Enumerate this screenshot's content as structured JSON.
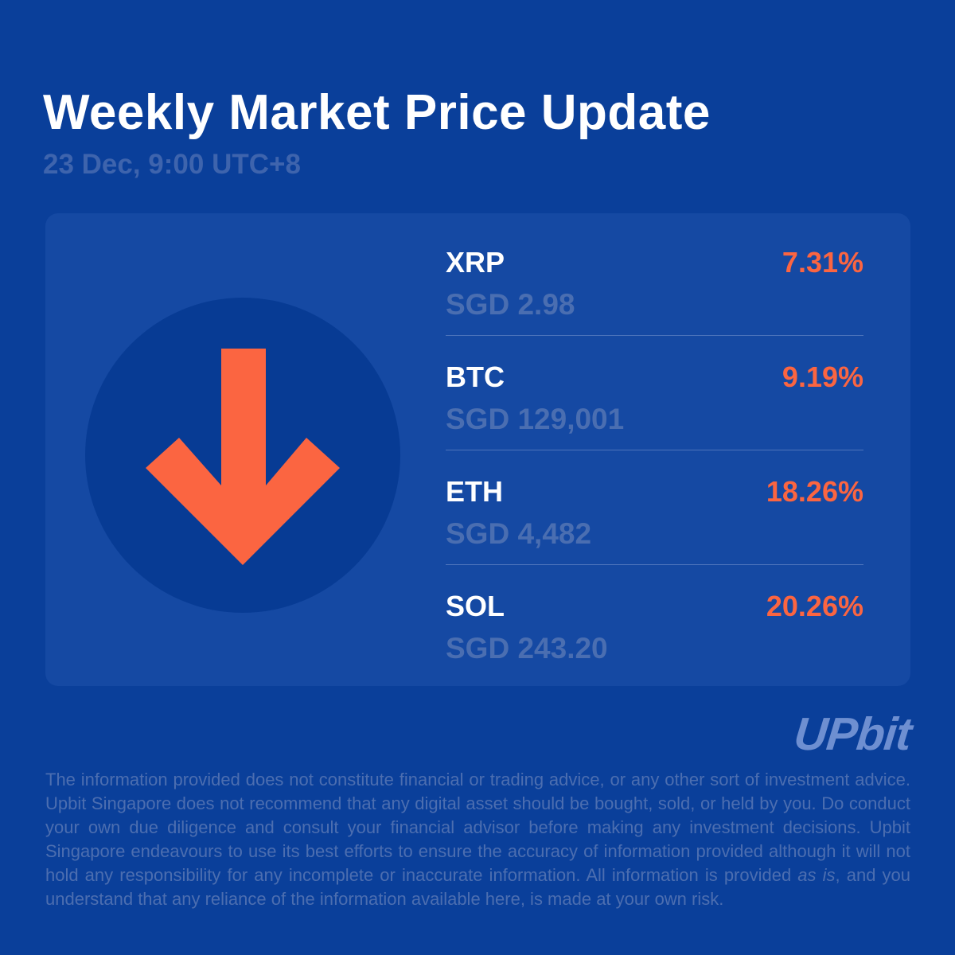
{
  "header": {
    "title": "Weekly Market Price Update",
    "subtitle": "23 Dec, 9:00 UTC+8"
  },
  "assets": [
    {
      "symbol": "XRP",
      "change": "7.31%",
      "price": "SGD 2.98"
    },
    {
      "symbol": "BTC",
      "change": "9.19%",
      "price": "SGD 129,001"
    },
    {
      "symbol": "ETH",
      "change": "18.26%",
      "price": "SGD 4,482"
    },
    {
      "symbol": "SOL",
      "change": "20.26%",
      "price": "SGD 243.20"
    }
  ],
  "indicator": {
    "icon": "arrow-down-icon",
    "direction": "down",
    "color": "#fb6541"
  },
  "brand": {
    "logo_text": "UPbit"
  },
  "disclaimer": {
    "before_em": "The information provided does not constitute financial or trading advice, or any other sort of investment advice. Upbit Singapore does not recommend that any digital asset should be bought, sold, or held by you. Do conduct your own due diligence and consult your financial advisor before making any investment decisions. Upbit Singapore endeavours to use its best efforts to ensure the accuracy of information provided although it will not hold any responsibility for any incomplete or inaccurate information. All information is provided ",
    "em": "as is",
    "after_em": ", and you understand that any reliance of the information available here, is made at your own risk."
  },
  "colors": {
    "background": "#0a3f9a",
    "card": "#1549a3",
    "circle": "#073b94",
    "accent_negative": "#fb6541",
    "muted_text": "#4a6eb1"
  }
}
